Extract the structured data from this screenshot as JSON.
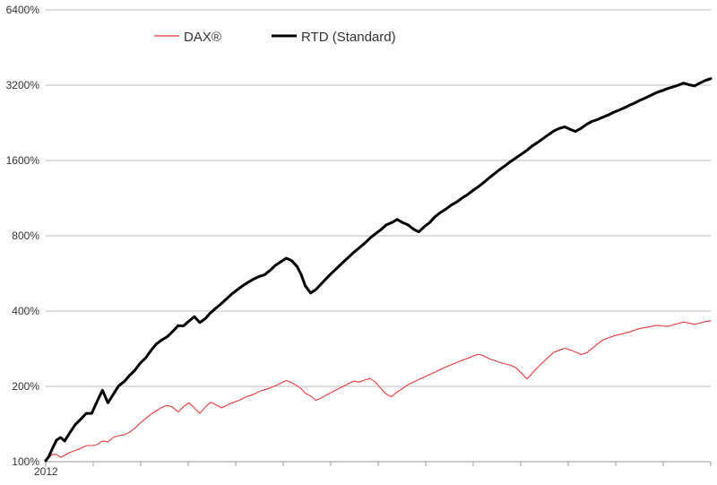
{
  "chart_data": {
    "type": "line",
    "title": "",
    "xlabel": "",
    "ylabel": "",
    "y_scale": "log2",
    "ylim": [
      100,
      6400
    ],
    "y_ticks": [
      {
        "value": 100,
        "label": "100%"
      },
      {
        "value": 200,
        "label": "200%"
      },
      {
        "value": 400,
        "label": "400%"
      },
      {
        "value": 800,
        "label": "800%"
      },
      {
        "value": 1600,
        "label": "1600%"
      },
      {
        "value": 3200,
        "label": "3200%"
      },
      {
        "value": 6400,
        "label": "6400%"
      }
    ],
    "x_tick_label": "2012",
    "x_minor_ticks": 14,
    "grid": "horizontal",
    "legend_position": "top-center",
    "series": [
      {
        "name": "DAX®",
        "color": "#e8383d",
        "x": [
          0,
          1.2,
          2.5,
          4,
          5.5,
          7,
          9,
          11,
          13,
          15,
          17,
          19,
          21,
          23,
          25,
          27,
          29,
          31,
          33,
          35,
          37,
          39,
          41,
          43,
          45,
          47,
          49,
          51,
          53,
          55,
          57,
          59,
          61,
          63,
          65,
          67,
          69,
          71,
          73,
          75,
          77,
          79,
          81,
          83,
          85,
          87,
          89,
          91,
          93,
          94.5,
          96,
          98,
          100,
          102,
          104,
          106,
          108,
          110,
          112,
          114,
          116,
          118,
          120,
          122,
          124,
          126,
          128,
          130,
          132,
          134,
          136,
          138,
          140,
          142,
          144,
          146,
          148,
          150,
          152,
          154,
          156,
          158,
          160,
          162,
          164,
          166,
          168,
          170,
          172,
          174,
          176,
          178,
          180,
          182,
          184,
          186,
          188,
          190,
          192,
          194,
          196,
          198,
          200,
          202,
          204,
          206,
          208,
          210,
          212,
          214,
          216,
          218,
          220,
          222,
          224,
          226,
          228,
          230,
          232,
          234,
          236,
          238,
          240,
          242,
          244,
          246
        ],
        "values": [
          100,
          104,
          107,
          107,
          104,
          106,
          109,
          111,
          113,
          116,
          116,
          117,
          121,
          120,
          125,
          127,
          128,
          131,
          136,
          143,
          149,
          155,
          160,
          165,
          168,
          165,
          158,
          166,
          172,
          164,
          156,
          165,
          173,
          169,
          164,
          168,
          172,
          175,
          179,
          183,
          186,
          191,
          194,
          197,
          201,
          206,
          211,
          207,
          201,
          196,
          188,
          183,
          176,
          180,
          185,
          190,
          195,
          200,
          205,
          210,
          208,
          212,
          215,
          208,
          196,
          186,
          182,
          190,
          196,
          203,
          208,
          213,
          218,
          223,
          228,
          234,
          239,
          244,
          249,
          254,
          259,
          264,
          269,
          265,
          258,
          254,
          249,
          246,
          243,
          237,
          226,
          214,
          226,
          238,
          250,
          262,
          274,
          279,
          284,
          280,
          274,
          268,
          272,
          283,
          295,
          306,
          312,
          318,
          322,
          326,
          330,
          336,
          341,
          344,
          347,
          351,
          349,
          347,
          352,
          357,
          362,
          358,
          354,
          358,
          363,
          366
        ]
      },
      {
        "name": "RTD (Standard)",
        "color": "#000000",
        "x": [
          0,
          1.2,
          2.5,
          4,
          5.5,
          7,
          9,
          11,
          13,
          15,
          17,
          19,
          21,
          23,
          25,
          27,
          29,
          31,
          33,
          35,
          37,
          39,
          41,
          43,
          45,
          47,
          49,
          51,
          53,
          55,
          57,
          59,
          61,
          63,
          65,
          67,
          69,
          71,
          73,
          75,
          77,
          79,
          81,
          83,
          85,
          87,
          89,
          91,
          93,
          94.5,
          96,
          98,
          100,
          102,
          104,
          106,
          108,
          110,
          112,
          114,
          116,
          118,
          120,
          122,
          124,
          126,
          128,
          130,
          132,
          134,
          136,
          138,
          140,
          142,
          144,
          146,
          148,
          150,
          152,
          154,
          156,
          158,
          160,
          162,
          164,
          166,
          168,
          170,
          172,
          174,
          176,
          178,
          180,
          182,
          184,
          186,
          188,
          190,
          192,
          194,
          196,
          198,
          200,
          202,
          204,
          206,
          208,
          210,
          212,
          214,
          216,
          218,
          220,
          222,
          224,
          226,
          228,
          230,
          232,
          234,
          236,
          238,
          240,
          242,
          244,
          246
        ],
        "values": [
          101,
          105,
          113,
          122,
          125,
          121,
          131,
          141,
          148,
          156,
          156,
          174,
          193,
          172,
          186,
          201,
          209,
          221,
          232,
          248,
          260,
          279,
          296,
          307,
          316,
          332,
          350,
          349,
          365,
          380,
          360,
          373,
          394,
          411,
          429,
          449,
          470,
          488,
          506,
          522,
          538,
          550,
          559,
          582,
          610,
          630,
          651,
          636,
          603,
          560,
          505,
          472,
          488,
          515,
          543,
          570,
          598,
          627,
          656,
          688,
          716,
          747,
          784,
          815,
          846,
          884,
          903,
          930,
          904,
          885,
          851,
          829,
          869,
          903,
          953,
          991,
          1022,
          1061,
          1092,
          1131,
          1167,
          1214,
          1256,
          1305,
          1363,
          1416,
          1473,
          1527,
          1585,
          1640,
          1697,
          1757,
          1830,
          1890,
          1960,
          2030,
          2100,
          2150,
          2180,
          2130,
          2090,
          2150,
          2230,
          2290,
          2330,
          2380,
          2430,
          2490,
          2540,
          2600,
          2660,
          2720,
          2790,
          2850,
          2920,
          2990,
          3040,
          3100,
          3150,
          3200,
          3260,
          3210,
          3180,
          3260,
          3340,
          3400
        ]
      }
    ]
  }
}
